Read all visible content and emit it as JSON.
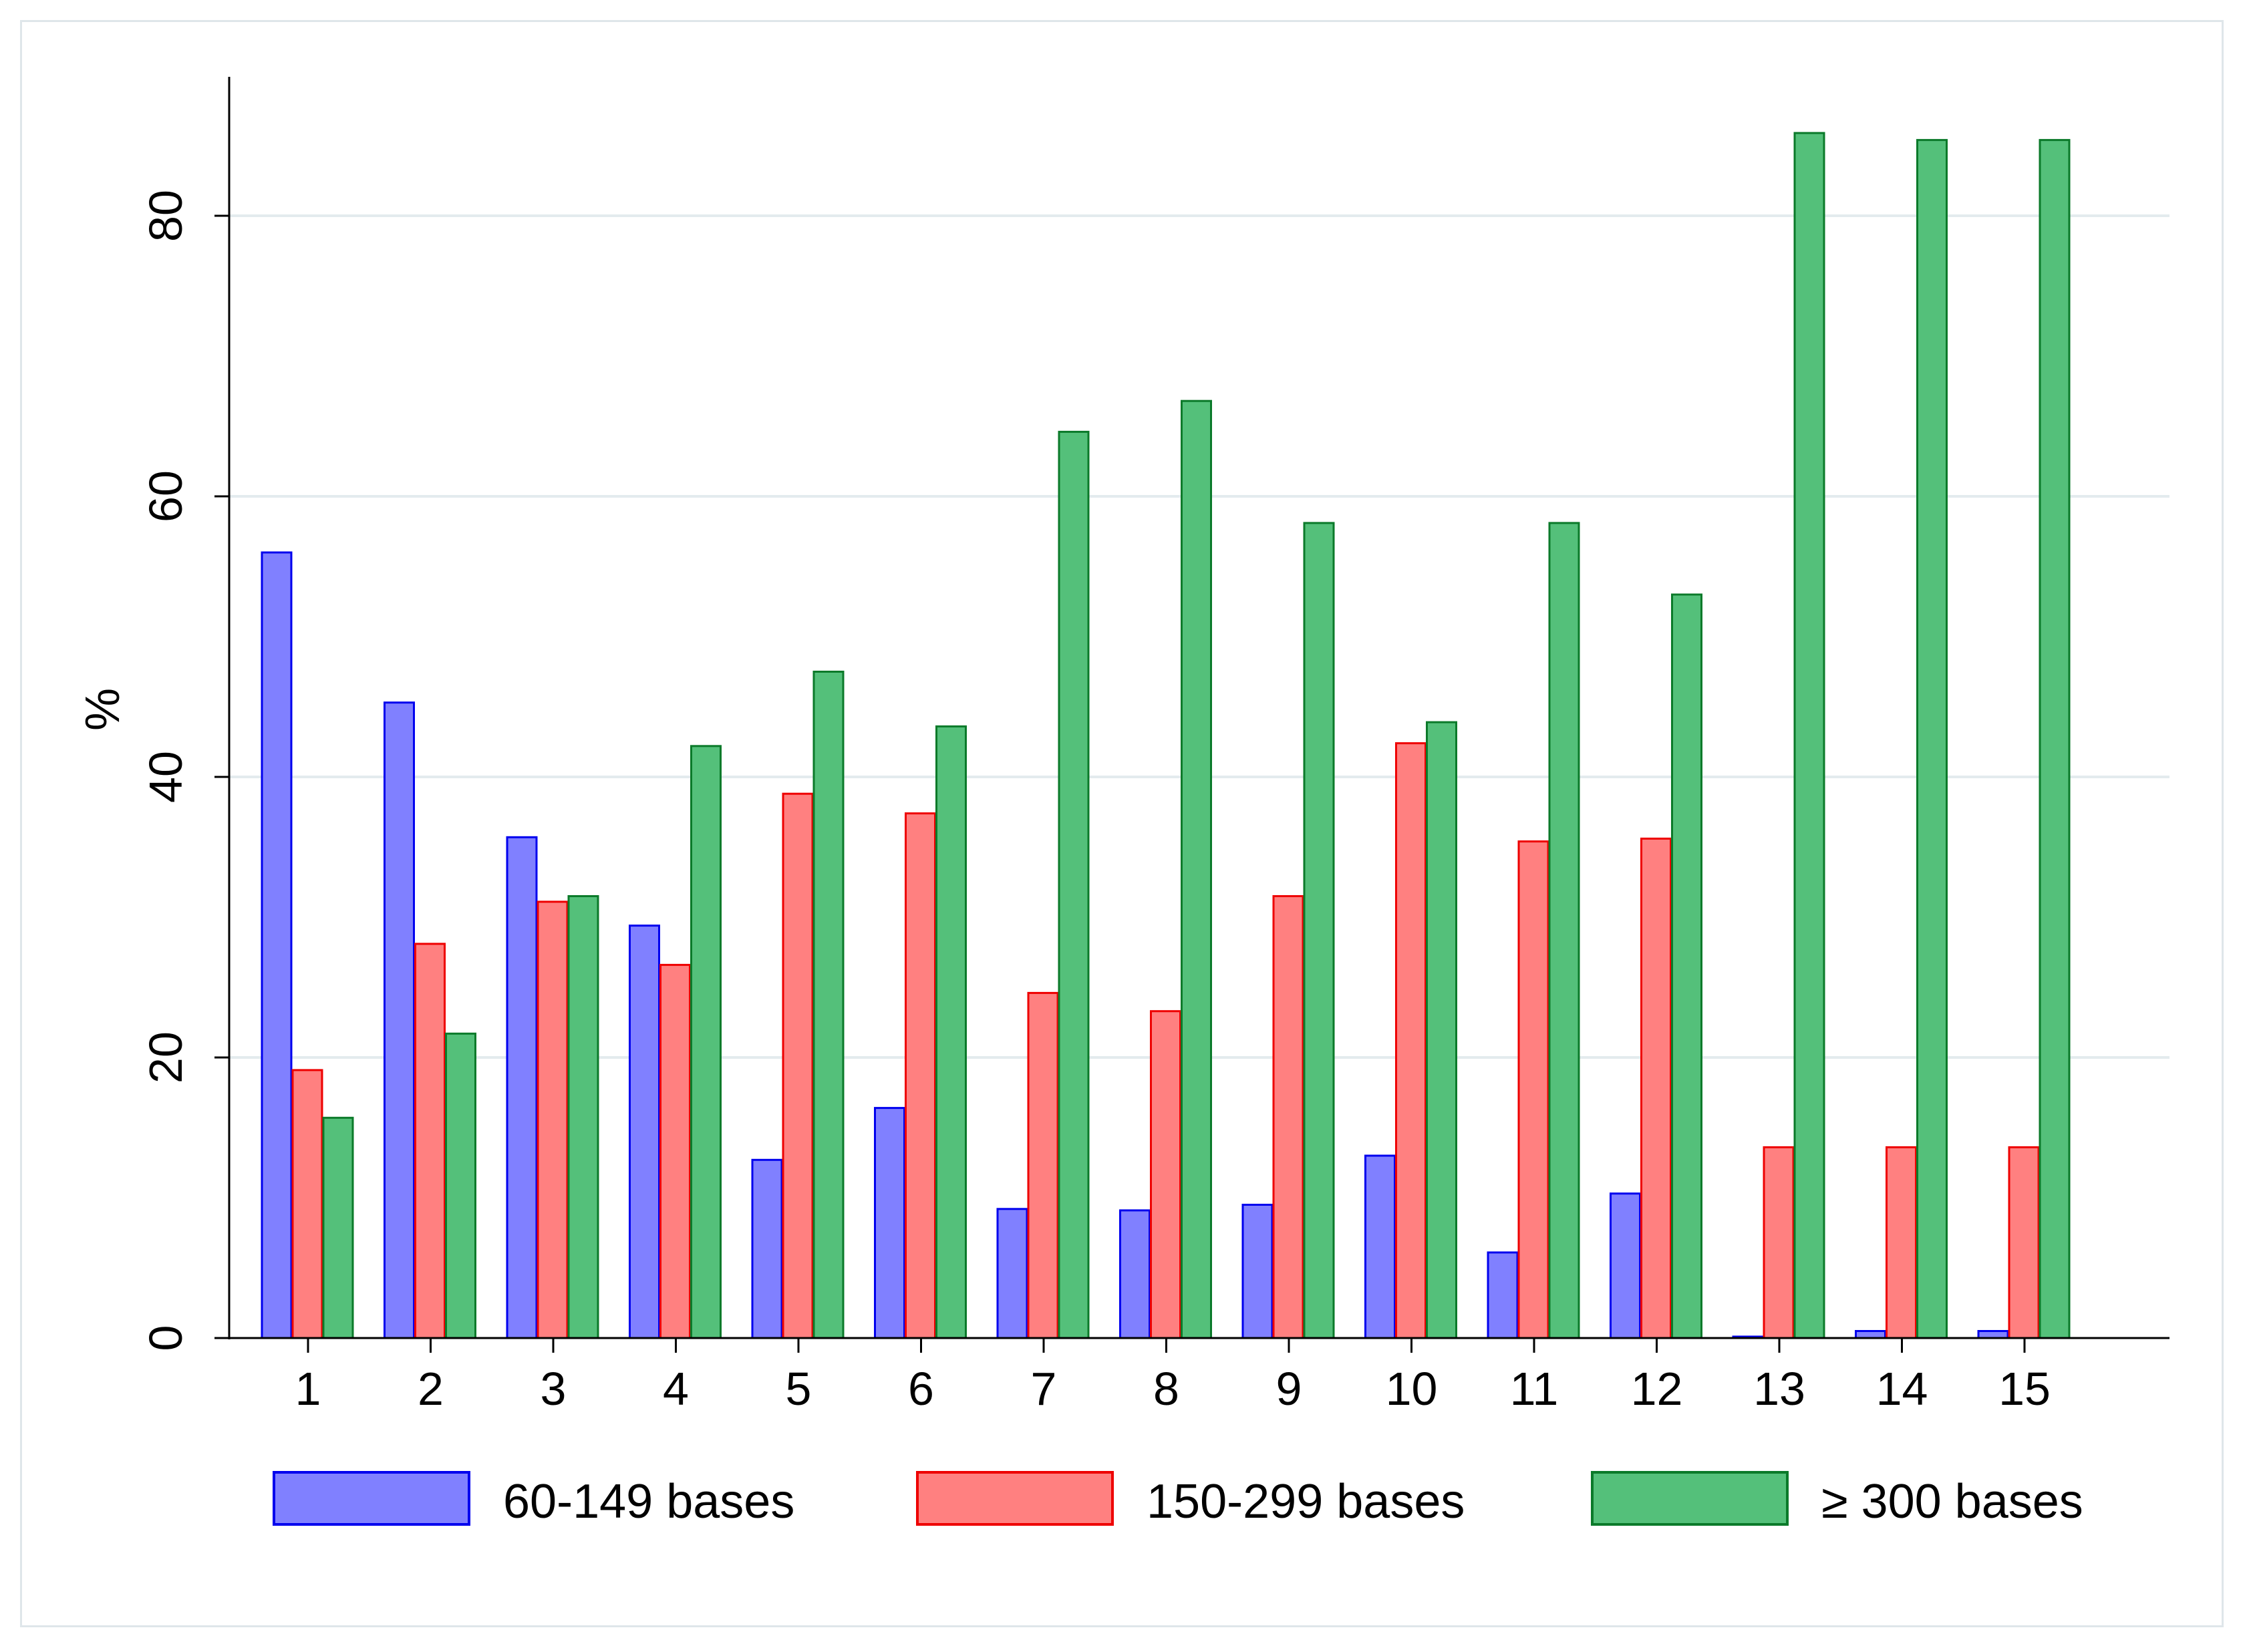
{
  "chart_data": {
    "type": "bar",
    "title": "",
    "xlabel": "",
    "ylabel": "%",
    "ylim": [
      0,
      90
    ],
    "yticks": [
      0,
      20,
      40,
      60,
      80
    ],
    "grid": true,
    "legend_position": "bottom",
    "categories": [
      "1",
      "2",
      "3",
      "4",
      "5",
      "6",
      "7",
      "8",
      "9",
      "10",
      "11",
      "12",
      "13",
      "14",
      "15"
    ],
    "series": [
      {
        "name": "60-149 bases",
        "fill": "#8080ff",
        "stroke": "#0000ee",
        "values": [
          56,
          45.3,
          35.7,
          29.4,
          12.7,
          16.4,
          9.2,
          9.1,
          9.5,
          13,
          6.1,
          10.3,
          0.1,
          0.5,
          0.5
        ]
      },
      {
        "name": "150-299 bases",
        "fill": "#ff8080",
        "stroke": "#ee0000",
        "values": [
          19.1,
          28.1,
          31.1,
          26.6,
          38.8,
          37.4,
          24.6,
          23.3,
          31.5,
          42.4,
          35.4,
          35.6,
          13.6,
          13.6,
          13.6
        ]
      },
      {
        "name": "≥ 300 bases",
        "fill": "#54c07a",
        "stroke": "#0b7a2a",
        "values": [
          15.7,
          21.7,
          31.5,
          42.2,
          47.5,
          43.6,
          64.6,
          66.8,
          58.1,
          43.9,
          58.1,
          53,
          85.9,
          85.4,
          85.4
        ]
      }
    ]
  }
}
